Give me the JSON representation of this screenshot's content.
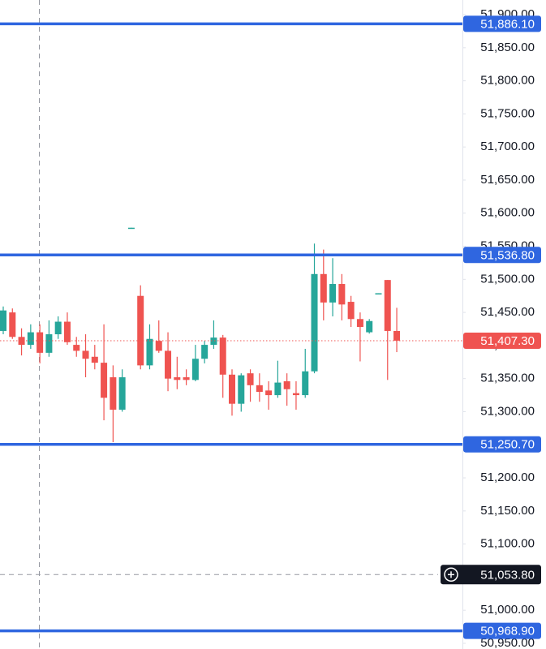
{
  "chart_data": {
    "type": "candlestick",
    "open": [
      51422,
      51450,
      51413,
      51401,
      51420,
      51389,
      51417,
      51436,
      51401,
      51392,
      51383,
      51374,
      51352,
      51303,
      51577,
      51475,
      51370,
      51407,
      51392,
      51352,
      51352,
      51348,
      51380,
      51401,
      51412,
      51356,
      51312,
      51358,
      51340,
      51332,
      51325,
      51346,
      51328,
      51325,
      51361,
      51508,
      51465,
      51493,
      51466,
      51440,
      51420,
      51478,
      51499,
      51422
    ],
    "high": [
      51459,
      51456,
      51426,
      51432,
      51432,
      51438,
      51444,
      51450,
      51413,
      51417,
      51401,
      51432,
      51370,
      51364,
      51578,
      51491,
      51432,
      51438,
      51420,
      51383,
      51364,
      51401,
      51407,
      51438,
      51416,
      51364,
      51358,
      51364,
      51358,
      51346,
      51377,
      51358,
      51346,
      51395,
      51554,
      51545,
      51532,
      51508,
      51475,
      51450,
      51440,
      51479,
      51499,
      51457
    ],
    "low": [
      51417,
      51410,
      51385,
      51395,
      51373,
      51383,
      51410,
      51401,
      51383,
      51352,
      51364,
      51287,
      51254,
      51300,
      51577,
      51364,
      51364,
      51389,
      51331,
      51334,
      51340,
      51346,
      51373,
      51395,
      51321,
      51294,
      51300,
      51315,
      51315,
      51303,
      51321,
      51309,
      51303,
      51321,
      51358,
      51438,
      51444,
      51438,
      51428,
      51376,
      51418,
      51478,
      51348,
      51390
    ],
    "close": [
      51453,
      51413,
      51401,
      51420,
      51389,
      51417,
      51436,
      51405,
      51392,
      51380,
      51374,
      51321,
      51303,
      51352,
      51578,
      51370,
      51410,
      51392,
      51350,
      51348,
      51348,
      51380,
      51401,
      51412,
      51356,
      51312,
      51355,
      51340,
      51330,
      51325,
      51344,
      51334,
      51325,
      51361,
      51508,
      51465,
      51493,
      51462,
      51440,
      51428,
      51437,
      51479,
      51422,
      51407.3
    ],
    "up_color": "#26a69a",
    "down_color": "#ef5350",
    "ylim": [
      50941.4,
      51922.1
    ],
    "yticks": [
      {
        "value": 50950,
        "label": "50,950.00"
      },
      {
        "value": 51000,
        "label": "51,000.00"
      },
      {
        "value": 51050,
        "label": "51,050.00"
      },
      {
        "value": 51100,
        "label": "51,100.00"
      },
      {
        "value": 51150,
        "label": "51,150.00"
      },
      {
        "value": 51200,
        "label": "51,200.00"
      },
      {
        "value": 51250,
        "label": "51,250.00"
      },
      {
        "value": 51300,
        "label": "51,300.00"
      },
      {
        "value": 51350,
        "label": "51,350.00"
      },
      {
        "value": 51400,
        "label": "51,400.00"
      },
      {
        "value": 51450,
        "label": "51,450.00"
      },
      {
        "value": 51500,
        "label": "51,500.00"
      },
      {
        "value": 51550,
        "label": "51,550.00"
      },
      {
        "value": 51600,
        "label": "51,600.00"
      },
      {
        "value": 51650,
        "label": "51,650.00"
      },
      {
        "value": 51700,
        "label": "51,700.00"
      },
      {
        "value": 51750,
        "label": "51,750.00"
      },
      {
        "value": 51800,
        "label": "51,800.00"
      },
      {
        "value": 51850,
        "label": "51,850.00"
      },
      {
        "value": 51900,
        "label": "51,900.00"
      }
    ],
    "levels": [
      {
        "value": 51886.1,
        "label": "51,886.10"
      },
      {
        "value": 51536.8,
        "label": "51,536.80"
      },
      {
        "value": 51250.7,
        "label": "51,250.70"
      },
      {
        "value": 50968.9,
        "label": "50,968.90"
      }
    ],
    "level_color": "#2f66e0",
    "last_price": {
      "value": 51407.3,
      "label": "51,407.30"
    },
    "crosshair": {
      "value": 51053.8,
      "label": "51,053.80"
    }
  }
}
